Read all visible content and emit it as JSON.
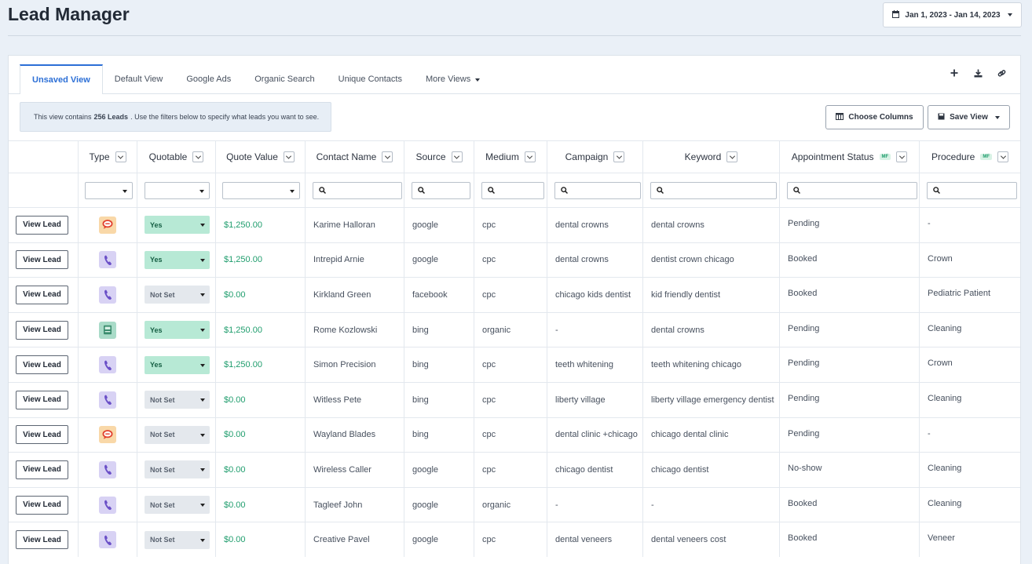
{
  "page": {
    "title": "Lead Manager"
  },
  "date_range": {
    "label": "Jan 1, 2023 - Jan 14, 2023"
  },
  "tabs": [
    {
      "label": "Unsaved View",
      "active": true
    },
    {
      "label": "Default View"
    },
    {
      "label": "Google Ads"
    },
    {
      "label": "Organic Search"
    },
    {
      "label": "Unique Contacts"
    },
    {
      "label": "More Views"
    }
  ],
  "info": {
    "prefix": "This view contains",
    "count": "256 Leads",
    "suffix": ". Use the filters below to specify what leads you want to see."
  },
  "actions": {
    "choose_columns": "Choose Columns",
    "save_view": "Save View"
  },
  "columns": {
    "type": "Type",
    "quotable": "Quotable",
    "quote_value": "Quote Value",
    "contact_name": "Contact Name",
    "source": "Source",
    "medium": "Medium",
    "campaign": "Campaign",
    "keyword": "Keyword",
    "appointment_status": "Appointment Status",
    "procedure": "Procedure",
    "mf_badge": "MF"
  },
  "view_lead_label": "View Lead",
  "rows": [
    {
      "type": "chat",
      "quotable": "Yes",
      "quote_value": "$1,250.00",
      "contact": "Karime Halloran",
      "source": "google",
      "medium": "cpc",
      "campaign": "dental crowns",
      "keyword": "dental crowns",
      "status": "Pending",
      "procedure": "-"
    },
    {
      "type": "call",
      "quotable": "Yes",
      "quote_value": "$1,250.00",
      "contact": "Intrepid Arnie",
      "source": "google",
      "medium": "cpc",
      "campaign": "dental crowns",
      "keyword": "dentist crown chicago",
      "status": "Booked",
      "procedure": "Crown"
    },
    {
      "type": "call",
      "quotable": "Not Set",
      "quote_value": "$0.00",
      "contact": "Kirkland Green",
      "source": "facebook",
      "medium": "cpc",
      "campaign": "chicago kids dentist",
      "keyword": "kid friendly dentist",
      "status": "Booked",
      "procedure": "Pediatric Patient"
    },
    {
      "type": "form",
      "quotable": "Yes",
      "quote_value": "$1,250.00",
      "contact": "Rome Kozlowski",
      "source": "bing",
      "medium": "organic",
      "campaign": "-",
      "keyword": "dental crowns",
      "status": "Pending",
      "procedure": "Cleaning"
    },
    {
      "type": "call",
      "quotable": "Yes",
      "quote_value": "$1,250.00",
      "contact": "Simon Precision",
      "source": "bing",
      "medium": "cpc",
      "campaign": "teeth whitening",
      "keyword": "teeth whitening chicago",
      "status": "Pending",
      "procedure": "Crown"
    },
    {
      "type": "call",
      "quotable": "Not Set",
      "quote_value": "$0.00",
      "contact": "Witless Pete",
      "source": "bing",
      "medium": "cpc",
      "campaign": "liberty village",
      "keyword": "liberty village emergency dentist",
      "status": "Pending",
      "procedure": "Cleaning"
    },
    {
      "type": "chat",
      "quotable": "Not Set",
      "quote_value": "$0.00",
      "contact": "Wayland Blades",
      "source": "bing",
      "medium": "cpc",
      "campaign": "dental clinic +chicago",
      "keyword": "chicago dental clinic",
      "status": "Pending",
      "procedure": "-"
    },
    {
      "type": "call",
      "quotable": "Not Set",
      "quote_value": "$0.00",
      "contact": "Wireless Caller",
      "source": "google",
      "medium": "cpc",
      "campaign": "chicago dentist",
      "keyword": "chicago dentist",
      "status": "No-show",
      "procedure": "Cleaning"
    },
    {
      "type": "call",
      "quotable": "Not Set",
      "quote_value": "$0.00",
      "contact": "Tagleef John",
      "source": "google",
      "medium": "organic",
      "campaign": "-",
      "keyword": "-",
      "status": "Booked",
      "procedure": "Cleaning"
    },
    {
      "type": "call",
      "quotable": "Not Set",
      "quote_value": "$0.00",
      "contact": "Creative Pavel",
      "source": "google",
      "medium": "cpc",
      "campaign": "dental veneers",
      "keyword": "dental veneers cost",
      "status": "Booked",
      "procedure": "Veneer"
    }
  ],
  "colors": {
    "accent": "#2c6fd6",
    "money": "#1f9d6d",
    "yes_bg": "#b7e9d5",
    "notset_bg": "#e4e8ed"
  }
}
